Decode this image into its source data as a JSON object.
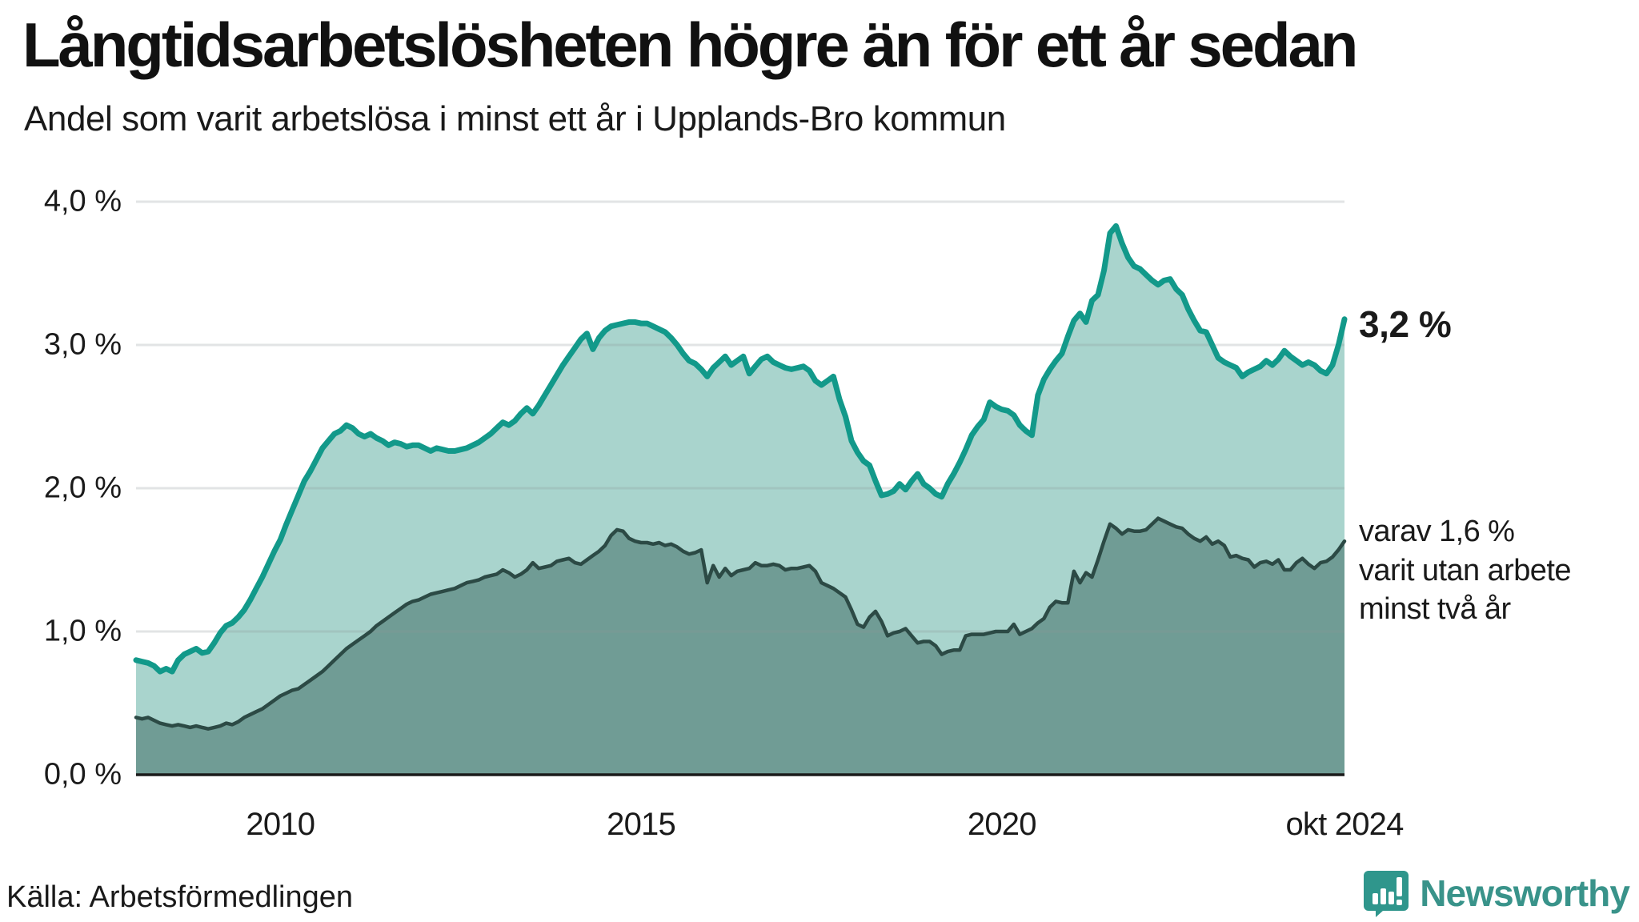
{
  "title": "Långtidsarbetslösheten högre än för ett år sedan",
  "subtitle": "Andel som varit arbetslösa i minst ett år i Upplands-Bro kommun",
  "source": "Källa: Arbetsförmedlingen",
  "brand": {
    "name": "Newsworthy",
    "icon": "newsworthy-bar-chart-logo",
    "color": "#39938a"
  },
  "annotations": {
    "latest_total": "3,2 %",
    "breakdown_line1": "varav 1,6 %",
    "breakdown_line2": "varit utan arbete",
    "breakdown_line3": "minst två år"
  },
  "colors": {
    "line_1yr": "#12998a",
    "fill_1yr": "#a9d4cd",
    "line_2yr": "#2c4a45",
    "fill_2yr": "#709c95",
    "gridline": "rgba(138,146,150,0.25)",
    "axis": "#1a1a1a"
  },
  "chart_data": {
    "type": "area",
    "title": "Långtidsarbetslösheten högre än för ett år sedan",
    "subtitle": "Andel som varit arbetslösa i minst ett år i Upplands-Bro kommun",
    "unit": "%",
    "frequency": "monthly",
    "x_start": "2008-01",
    "x_end": "2024-10",
    "ylim": [
      0,
      4
    ],
    "grid": "horizontal",
    "legend_position": "right-annotations",
    "y_ticks": [
      {
        "label": "4,0 %",
        "value": 4.0
      },
      {
        "label": "3,0 %",
        "value": 3.0
      },
      {
        "label": "2,0 %",
        "value": 2.0
      },
      {
        "label": "1,0 %",
        "value": 1.0
      },
      {
        "label": "0,0 %",
        "value": 0.0
      }
    ],
    "x_ticks": [
      {
        "label": "2010",
        "month_index": 24
      },
      {
        "label": "2015",
        "month_index": 84
      },
      {
        "label": "2020",
        "month_index": 144
      },
      {
        "label": "okt 2024",
        "month_index": 201
      }
    ],
    "series": [
      {
        "name": "Andel som varit arbetslösa i minst ett år",
        "last_value_label": "3,2 %",
        "color": "#12998a",
        "fill": "#a9d4cd",
        "values": [
          0.8,
          0.79,
          0.78,
          0.76,
          0.72,
          0.74,
          0.72,
          0.8,
          0.84,
          0.86,
          0.88,
          0.85,
          0.86,
          0.92,
          0.99,
          1.04,
          1.06,
          1.1,
          1.15,
          1.22,
          1.3,
          1.38,
          1.47,
          1.56,
          1.64,
          1.75,
          1.85,
          1.95,
          2.05,
          2.12,
          2.2,
          2.28,
          2.33,
          2.38,
          2.4,
          2.44,
          2.42,
          2.38,
          2.36,
          2.38,
          2.35,
          2.33,
          2.3,
          2.32,
          2.31,
          2.29,
          2.3,
          2.3,
          2.28,
          2.26,
          2.28,
          2.27,
          2.26,
          2.26,
          2.27,
          2.28,
          2.3,
          2.32,
          2.35,
          2.38,
          2.42,
          2.46,
          2.44,
          2.47,
          2.52,
          2.56,
          2.52,
          2.58,
          2.65,
          2.72,
          2.79,
          2.86,
          2.92,
          2.98,
          3.04,
          3.08,
          2.97,
          3.05,
          3.1,
          3.13,
          3.14,
          3.15,
          3.16,
          3.16,
          3.15,
          3.15,
          3.13,
          3.11,
          3.09,
          3.05,
          3.0,
          2.94,
          2.89,
          2.87,
          2.83,
          2.78,
          2.84,
          2.88,
          2.92,
          2.86,
          2.89,
          2.92,
          2.8,
          2.85,
          2.9,
          2.92,
          2.88,
          2.86,
          2.84,
          2.83,
          2.84,
          2.85,
          2.82,
          2.75,
          2.72,
          2.75,
          2.78,
          2.62,
          2.5,
          2.33,
          2.25,
          2.19,
          2.16,
          2.05,
          1.95,
          1.96,
          1.98,
          2.03,
          1.99,
          2.05,
          2.1,
          2.03,
          2.0,
          1.96,
          1.94,
          2.03,
          2.1,
          2.18,
          2.27,
          2.37,
          2.43,
          2.48,
          2.6,
          2.57,
          2.55,
          2.54,
          2.51,
          2.44,
          2.4,
          2.37,
          2.65,
          2.76,
          2.83,
          2.89,
          2.94,
          3.06,
          3.17,
          3.22,
          3.16,
          3.31,
          3.35,
          3.52,
          3.78,
          3.83,
          3.71,
          3.61,
          3.55,
          3.53,
          3.49,
          3.45,
          3.42,
          3.45,
          3.46,
          3.39,
          3.35,
          3.25,
          3.17,
          3.1,
          3.09,
          3.0,
          2.91,
          2.88,
          2.86,
          2.84,
          2.78,
          2.81,
          2.83,
          2.85,
          2.89,
          2.86,
          2.9,
          2.96,
          2.92,
          2.89,
          2.86,
          2.88,
          2.86,
          2.82,
          2.8,
          2.86,
          3.0,
          3.18
        ]
      },
      {
        "name": "Varav utan arbete minst två år",
        "last_value_label": "1,6 %",
        "color": "#2c4a45",
        "fill": "#709c95",
        "values": [
          0.4,
          0.39,
          0.4,
          0.38,
          0.36,
          0.35,
          0.34,
          0.35,
          0.34,
          0.33,
          0.34,
          0.33,
          0.32,
          0.33,
          0.34,
          0.36,
          0.35,
          0.37,
          0.4,
          0.42,
          0.44,
          0.46,
          0.49,
          0.52,
          0.55,
          0.57,
          0.59,
          0.6,
          0.63,
          0.66,
          0.69,
          0.72,
          0.76,
          0.8,
          0.84,
          0.88,
          0.91,
          0.94,
          0.97,
          1.0,
          1.04,
          1.07,
          1.1,
          1.13,
          1.16,
          1.19,
          1.21,
          1.22,
          1.24,
          1.26,
          1.27,
          1.28,
          1.29,
          1.3,
          1.32,
          1.34,
          1.35,
          1.36,
          1.38,
          1.39,
          1.4,
          1.43,
          1.41,
          1.38,
          1.4,
          1.43,
          1.48,
          1.44,
          1.45,
          1.46,
          1.49,
          1.5,
          1.51,
          1.48,
          1.47,
          1.5,
          1.53,
          1.56,
          1.6,
          1.67,
          1.71,
          1.7,
          1.65,
          1.63,
          1.62,
          1.62,
          1.61,
          1.62,
          1.6,
          1.61,
          1.59,
          1.56,
          1.54,
          1.55,
          1.57,
          1.34,
          1.46,
          1.38,
          1.44,
          1.39,
          1.42,
          1.43,
          1.44,
          1.48,
          1.46,
          1.46,
          1.47,
          1.46,
          1.43,
          1.44,
          1.44,
          1.45,
          1.46,
          1.42,
          1.34,
          1.32,
          1.3,
          1.27,
          1.24,
          1.15,
          1.05,
          1.03,
          1.1,
          1.14,
          1.07,
          0.97,
          0.99,
          1.0,
          1.02,
          0.97,
          0.92,
          0.93,
          0.93,
          0.9,
          0.84,
          0.86,
          0.87,
          0.87,
          0.97,
          0.98,
          0.98,
          0.98,
          0.99,
          1.0,
          1.0,
          1.0,
          1.05,
          0.98,
          1.0,
          1.02,
          1.06,
          1.09,
          1.17,
          1.21,
          1.2,
          1.2,
          1.42,
          1.34,
          1.41,
          1.38,
          1.5,
          1.63,
          1.75,
          1.72,
          1.68,
          1.71,
          1.7,
          1.7,
          1.71,
          1.75,
          1.79,
          1.77,
          1.75,
          1.73,
          1.72,
          1.68,
          1.65,
          1.63,
          1.66,
          1.61,
          1.63,
          1.6,
          1.52,
          1.53,
          1.51,
          1.5,
          1.45,
          1.48,
          1.49,
          1.47,
          1.5,
          1.43,
          1.43,
          1.48,
          1.51,
          1.47,
          1.44,
          1.48,
          1.49,
          1.52,
          1.57,
          1.63
        ]
      }
    ]
  }
}
